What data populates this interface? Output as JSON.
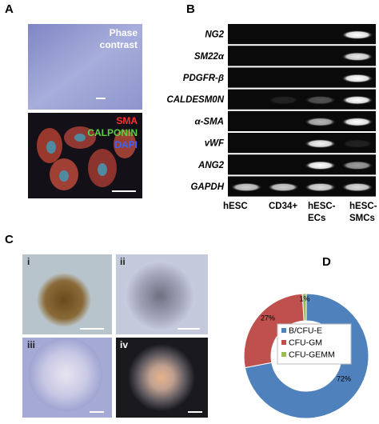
{
  "panel_a": {
    "label": "A",
    "top_caption": [
      "Phase",
      "contrast"
    ],
    "stain_labels": [
      "SMA",
      "CALPONIN",
      "DAPI"
    ]
  },
  "panel_b": {
    "label": "B",
    "rows": [
      "NG2",
      "SM22α",
      "PDGFR-β",
      "CALDESM0N",
      "α-SMA",
      "vWF",
      "ANG2",
      "GAPDH"
    ],
    "columns": [
      [
        "hESC"
      ],
      [
        "CD34+"
      ],
      [
        "hESC-",
        "ECs"
      ],
      [
        "hESC-",
        "SMCs"
      ]
    ]
  },
  "panel_c": {
    "label": "C",
    "sublabels": [
      "i",
      "ii",
      "iii",
      "iv"
    ]
  },
  "chart_data": {
    "type": "donut",
    "title": "D",
    "categories": [
      "B/CFU-E",
      "CFU-GM",
      "CFU-GEMM"
    ],
    "values": [
      72,
      27,
      1
    ],
    "value_labels": [
      "72%",
      "27%",
      "1%"
    ],
    "colors": [
      "#4f81bd",
      "#c0504d",
      "#9bbb59"
    ]
  }
}
